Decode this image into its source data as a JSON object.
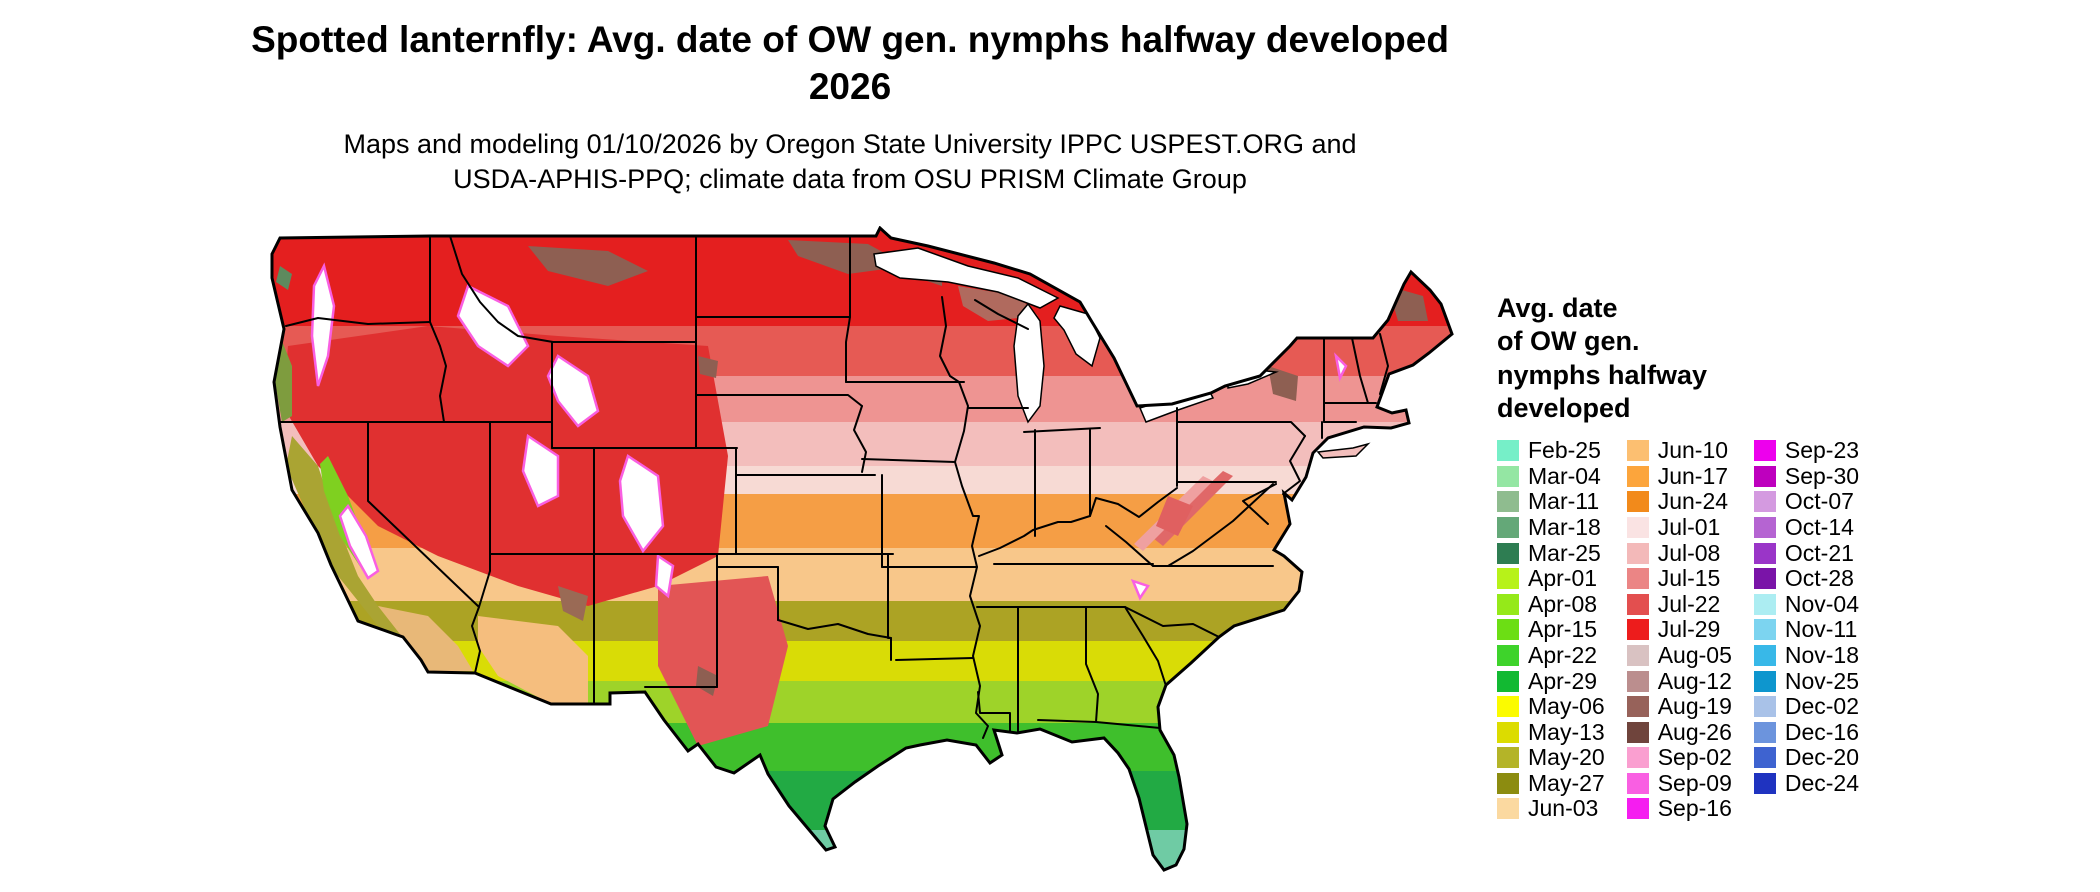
{
  "header": {
    "title_line1": "Spotted lanternfly: Avg. date of OW gen. nymphs halfway developed",
    "title_line2": "2026",
    "subtitle": "Maps and modeling 01/10/2026 by Oregon State University IPPC USPEST.ORG and\nUSDA-APHIS-PPQ; climate data from OSU PRISM Climate Group"
  },
  "legend": {
    "title": "Avg. date\nof OW gen.\nnymphs halfway\ndeveloped",
    "columns": [
      [
        {
          "label": "Feb-25",
          "color": "#76EFC8"
        },
        {
          "label": "Mar-04",
          "color": "#94E6A3"
        },
        {
          "label": "Mar-11",
          "color": "#8FBC8F"
        },
        {
          "label": "Mar-18",
          "color": "#64A878"
        },
        {
          "label": "Mar-25",
          "color": "#2E7D52"
        },
        {
          "label": "Apr-01",
          "color": "#B7F219"
        },
        {
          "label": "Apr-08",
          "color": "#95E919"
        },
        {
          "label": "Apr-15",
          "color": "#6CDE14"
        },
        {
          "label": "Apr-22",
          "color": "#3ED32B"
        },
        {
          "label": "Apr-29",
          "color": "#12B932"
        },
        {
          "label": "May-06",
          "color": "#FBFB00"
        },
        {
          "label": "May-13",
          "color": "#DCDC00"
        },
        {
          "label": "May-20",
          "color": "#B4B428"
        },
        {
          "label": "May-27",
          "color": "#8C8C10"
        },
        {
          "label": "Jun-03",
          "color": "#FBD9A0"
        }
      ],
      [
        {
          "label": "Jun-10",
          "color": "#FCBF71"
        },
        {
          "label": "Jun-17",
          "color": "#FCA53C"
        },
        {
          "label": "Jun-24",
          "color": "#F28A1B"
        },
        {
          "label": "Jul-01",
          "color": "#FAE3E3"
        },
        {
          "label": "Jul-08",
          "color": "#F3B9B9"
        },
        {
          "label": "Jul-15",
          "color": "#EB8585"
        },
        {
          "label": "Jul-22",
          "color": "#E34F4F"
        },
        {
          "label": "Jul-29",
          "color": "#ED1C1C"
        },
        {
          "label": "Aug-05",
          "color": "#D9C2C2"
        },
        {
          "label": "Aug-12",
          "color": "#BB8E8E"
        },
        {
          "label": "Aug-19",
          "color": "#97625A"
        },
        {
          "label": "Aug-26",
          "color": "#6F443C"
        },
        {
          "label": "Sep-02",
          "color": "#FA9FD0"
        },
        {
          "label": "Sep-09",
          "color": "#F95FE2"
        },
        {
          "label": "Sep-16",
          "color": "#F51DF0"
        }
      ],
      [
        {
          "label": "Sep-23",
          "color": "#ED00ED"
        },
        {
          "label": "Sep-30",
          "color": "#BE00BE"
        },
        {
          "label": "Oct-07",
          "color": "#D49AE0"
        },
        {
          "label": "Oct-14",
          "color": "#B564D2"
        },
        {
          "label": "Oct-21",
          "color": "#9A35C8"
        },
        {
          "label": "Oct-28",
          "color": "#7A14A8"
        },
        {
          "label": "Nov-04",
          "color": "#ACEDF2"
        },
        {
          "label": "Nov-11",
          "color": "#7CD4F0"
        },
        {
          "label": "Nov-18",
          "color": "#38B8E8"
        },
        {
          "label": "Nov-25",
          "color": "#0E96CE"
        },
        {
          "label": "Dec-02",
          "color": "#A9C2E8"
        },
        {
          "label": "Dec-16",
          "color": "#6C94DD"
        },
        {
          "label": "Dec-20",
          "color": "#3E63D0"
        },
        {
          "label": "Dec-24",
          "color": "#1F33C0"
        }
      ]
    ]
  },
  "map": {
    "bands": [
      {
        "until": 100,
        "color": "#E41F1F"
      },
      {
        "until": 150,
        "color": "#E65A54"
      },
      {
        "until": 196,
        "color": "#EE9492"
      },
      {
        "until": 240,
        "color": "#F3BEBC"
      },
      {
        "until": 268,
        "color": "#F7DAD4"
      },
      {
        "until": 322,
        "color": "#F59E45"
      },
      {
        "until": 375,
        "color": "#F8C78A"
      },
      {
        "until": 415,
        "color": "#ACA324"
      },
      {
        "until": 455,
        "color": "#D9DC06"
      },
      {
        "until": 497,
        "color": "#9ED329"
      },
      {
        "until": 545,
        "color": "#3FBF2C"
      },
      {
        "until": 604,
        "color": "#22AA44"
      },
      {
        "until": 656,
        "color": "#6FCBA4"
      }
    ],
    "accent_colors": {
      "mountain_white": "#FFFFFF",
      "mountain_fringe": "#F95FE2",
      "high_elevation_brown": "#8E5F52",
      "interior_west_red": "#E03030"
    }
  }
}
